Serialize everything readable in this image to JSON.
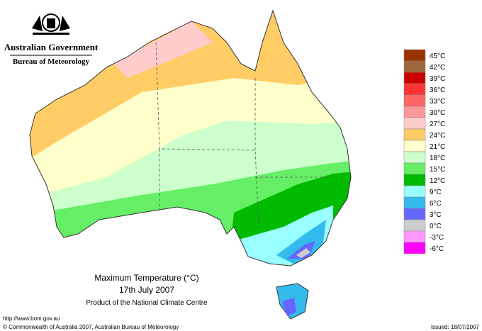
{
  "header": {
    "title": "Australian Government",
    "subtitle": "Bureau of Meteorology"
  },
  "legend": [
    {
      "label": "45°C",
      "color": "#993300"
    },
    {
      "label": "42°C",
      "color": "#a0663a"
    },
    {
      "label": "39°C",
      "color": "#cc0000"
    },
    {
      "label": "36°C",
      "color": "#ff3333"
    },
    {
      "label": "33°C",
      "color": "#ff6666"
    },
    {
      "label": "30°C",
      "color": "#ff9999"
    },
    {
      "label": "27°C",
      "color": "#ffcccc"
    },
    {
      "label": "24°C",
      "color": "#ffcc66"
    },
    {
      "label": "21°C",
      "color": "#ffffcc"
    },
    {
      "label": "18°C",
      "color": "#ccffcc"
    },
    {
      "label": "15°C",
      "color": "#66ee66"
    },
    {
      "label": "12°C",
      "color": "#00bb00"
    },
    {
      "label": "9°C",
      "color": "#99ffff"
    },
    {
      "label": "6°C",
      "color": "#33bbee"
    },
    {
      "label": "3°C",
      "color": "#6666ff"
    },
    {
      "label": "0°C",
      "color": "#cccccc"
    },
    {
      "label": "-3°C",
      "color": "#ff99ff"
    },
    {
      "label": "-6°C",
      "color": "#ff00ff"
    }
  ],
  "caption": {
    "title": "Maximum Temperature (°C)",
    "date": "17th July 2007",
    "source": "Product of the National Climate Centre"
  },
  "footer": {
    "url": "http://www.bom.gov.au",
    "copyright": "© Commonwealth of Australia 2007, Australian Bureau of Meteorology",
    "issued": "Issued: 18/07/2007"
  }
}
